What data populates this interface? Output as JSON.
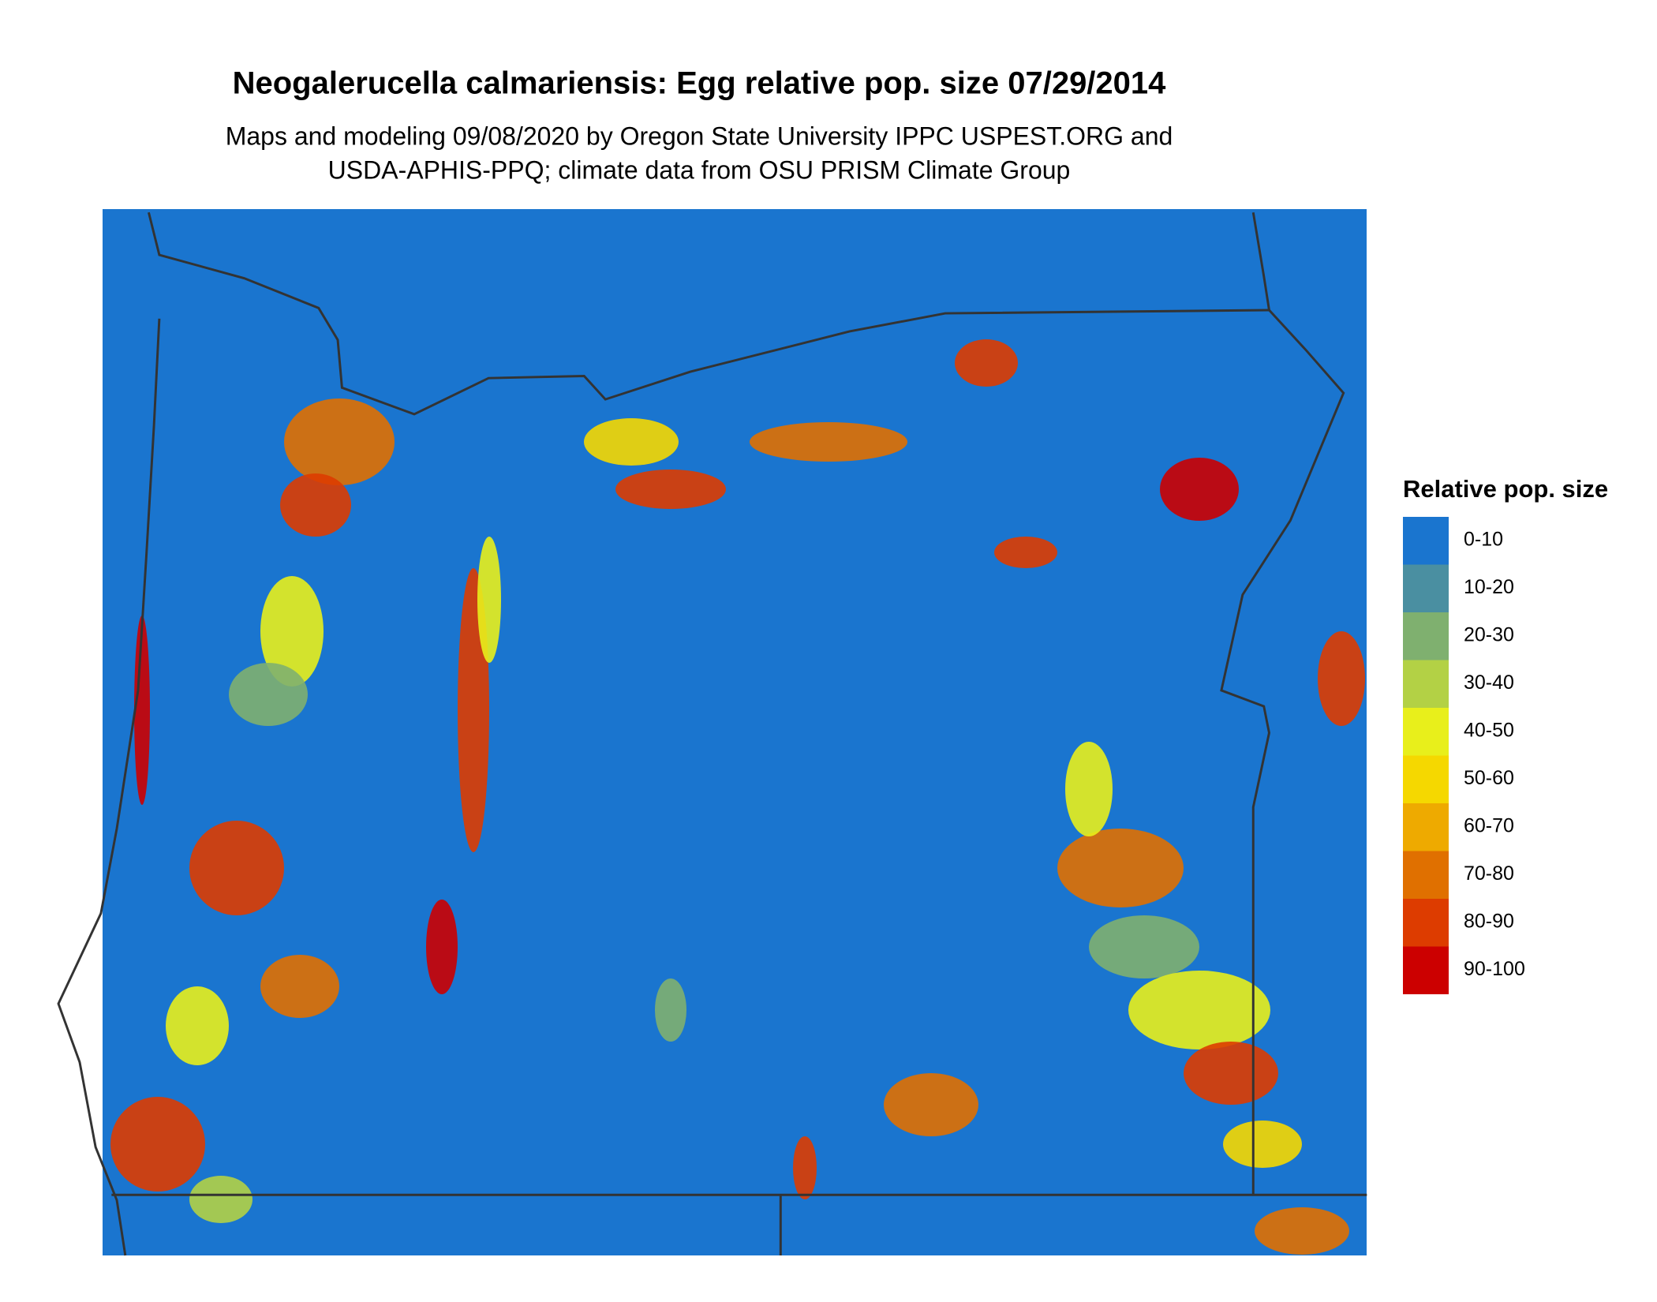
{
  "map": {
    "title": "Neogalerucella calmariensis: Egg relative pop. size 07/29/2014",
    "subtitle": [
      "Maps and modeling 09/08/2020 by Oregon State University IPPC USPEST.ORG and",
      "USDA-APHIS-PPQ; climate data from OSU PRISM Climate Group"
    ],
    "legend": {
      "title": "Relative pop. size",
      "items": [
        {
          "label": "0-10",
          "color": "#1a75cf"
        },
        {
          "label": "10-20",
          "color": "#4a8fa1"
        },
        {
          "label": "20-30",
          "color": "#7fb06f"
        },
        {
          "label": "30-40",
          "color": "#b3d145"
        },
        {
          "label": "40-50",
          "color": "#e8ef1b"
        },
        {
          "label": "50-60",
          "color": "#f5d800"
        },
        {
          "label": "60-70",
          "color": "#eeaa00"
        },
        {
          "label": "70-80",
          "color": "#e07000"
        },
        {
          "label": "80-90",
          "color": "#dd3c00"
        },
        {
          "label": "90-100",
          "color": "#cc0000"
        }
      ]
    }
  }
}
